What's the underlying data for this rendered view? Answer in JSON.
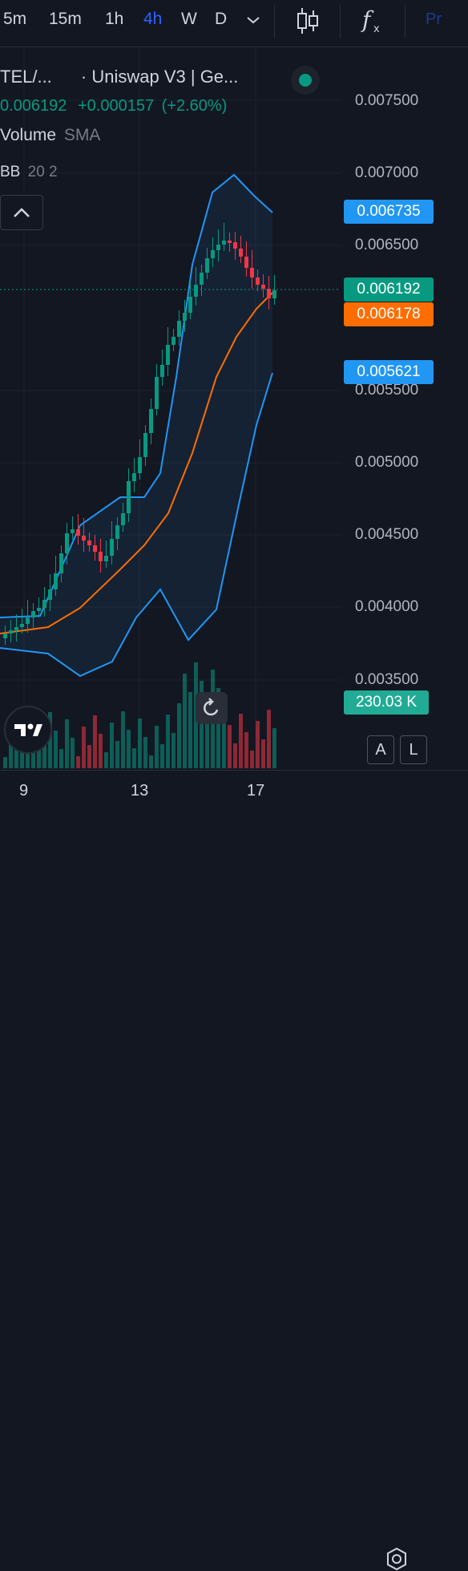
{
  "toolbar": {
    "timeframes": [
      "5m",
      "15m",
      "1h",
      "4h",
      "W",
      "D"
    ],
    "active_timeframe": "4h",
    "icons": [
      "chevron-down-icon",
      "candles-icon",
      "indicators-icon"
    ],
    "cut_off_text": "Pr"
  },
  "legend": {
    "symbol": "TEL/...",
    "exchange": "· Uniswap V3 | Ge...",
    "last": "0.006192",
    "change": "+0.000157",
    "change_pct": "(+2.60%)",
    "volume_label": "Volume",
    "volume_ma": "SMA",
    "bb_label": "BB",
    "bb_params": "20 2"
  },
  "price_axis": [
    "0.007500",
    "0.007000",
    "0.006500",
    "0.005500",
    "0.005000",
    "0.004500",
    "0.004000",
    "0.003500"
  ],
  "price_tags": {
    "bb_upper": "0.006735",
    "last_price": "0.006192",
    "bb_basis": "0.006178",
    "bb_lower": "0.005621",
    "volume": "230.03 K"
  },
  "colors": {
    "up": "#089981",
    "down": "#f23645",
    "bb_band": "#2196f3",
    "bb_basis": "#ff6d00",
    "accent": "#2962ff"
  },
  "time_axis": [
    "9",
    "13",
    "17"
  ],
  "buttons": {
    "auto": "A",
    "log": "L"
  }
}
